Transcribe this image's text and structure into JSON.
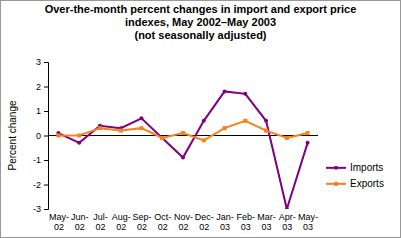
{
  "chart_data": {
    "type": "line",
    "title": "Over-the-month percent changes in import and export price indexes, May 2002–May 2003",
    "subtitle": "(not seasonally adjusted)",
    "y_label": "Percent change",
    "categories": [
      "May-02",
      "Jun-02",
      "Jul-02",
      "Aug-02",
      "Sep-02",
      "Oct-02",
      "Nov-02",
      "Dec-02",
      "Jan-03",
      "Feb-03",
      "Mar-03",
      "Apr-03",
      "May-03"
    ],
    "series": [
      {
        "name": "Imports",
        "color": "#800080",
        "marker": "circle",
        "values": [
          0.1,
          -0.3,
          0.4,
          0.3,
          0.7,
          -0.1,
          -0.9,
          0.6,
          1.8,
          1.7,
          0.6,
          -3.0,
          -0.3
        ]
      },
      {
        "name": "Exports",
        "color": "#f7821b",
        "marker": "square",
        "values": [
          0.0,
          0.0,
          0.3,
          0.2,
          0.3,
          -0.1,
          0.1,
          -0.2,
          0.3,
          0.6,
          0.2,
          -0.1,
          0.1
        ]
      }
    ],
    "ylim": [
      -3,
      3
    ],
    "yticks": [
      -3,
      -2,
      -1,
      0,
      1,
      2,
      3
    ],
    "grid": false,
    "legend": "right"
  }
}
